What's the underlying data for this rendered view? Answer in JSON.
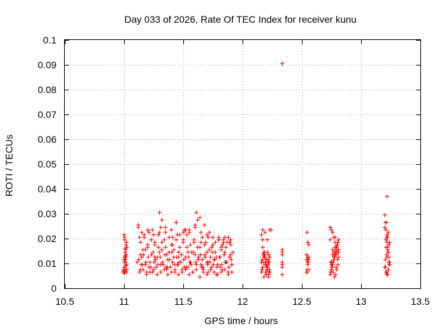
{
  "chart_data": {
    "type": "scatter",
    "title": "Day 033 of 2026, Rate Of TEC Index for receiver kunu",
    "xlabel": "GPS time / hours",
    "ylabel": "ROTI / TECUs",
    "xlim": [
      10.5,
      13.5
    ],
    "ylim": [
      0,
      0.1
    ],
    "xticks": [
      "10.5",
      "11",
      "11.5",
      "12",
      "12.5",
      "13",
      "13.5"
    ],
    "yticks": [
      "0",
      "0.01",
      "0.02",
      "0.03",
      "0.04",
      "0.05",
      "0.06",
      "0.07",
      "0.08",
      "0.09",
      "0.1"
    ],
    "xtick_values": [
      10.5,
      11,
      11.5,
      12,
      12.5,
      13,
      13.5
    ],
    "ytick_values": [
      0,
      0.01,
      0.02,
      0.03,
      0.04,
      0.05,
      0.06,
      0.07,
      0.08,
      0.09,
      0.1
    ],
    "grid": true,
    "marker": "+",
    "colors": {
      "points": "#ff0000",
      "grid": "#9a9a9a",
      "axes": "#000000"
    },
    "series": [
      {
        "x": [
          10.995,
          10.998,
          11.0,
          11.003,
          11.005,
          11.007,
          11.01,
          11.012,
          11.015,
          11.018,
          11.02,
          11.023,
          11.0,
          11.005,
          11.01,
          11.015,
          11.02,
          11.0,
          11.003,
          11.008,
          11.012,
          11.018,
          11.022,
          11.0,
          11.01,
          11.015,
          11.02,
          11.005,
          11.012,
          11.12,
          11.13,
          11.14,
          11.15,
          11.16,
          11.17,
          11.18,
          11.19,
          11.2,
          11.21,
          11.22,
          11.23,
          11.24,
          11.25,
          11.26,
          11.27,
          11.28,
          11.29,
          11.3,
          11.31,
          11.32,
          11.33,
          11.34,
          11.35,
          11.36,
          11.37,
          11.38,
          11.39,
          11.4,
          11.41,
          11.42,
          11.43,
          11.44,
          11.45,
          11.46,
          11.47,
          11.48,
          11.49,
          11.5,
          11.51,
          11.52,
          11.53,
          11.54,
          11.55,
          11.56,
          11.57,
          11.58,
          11.59,
          11.6,
          11.61,
          11.62,
          11.63,
          11.64,
          11.65,
          11.66,
          11.67,
          11.68,
          11.69,
          11.7,
          11.71,
          11.72,
          11.73,
          11.74,
          11.75,
          11.76,
          11.77,
          11.78,
          11.79,
          11.8,
          11.81,
          11.82,
          11.83,
          11.84,
          11.85,
          11.86,
          11.87,
          11.88,
          11.89,
          11.9,
          11.91,
          11.92,
          11.125,
          11.145,
          11.165,
          11.185,
          11.205,
          11.225,
          11.245,
          11.265,
          11.285,
          11.305,
          11.325,
          11.345,
          11.365,
          11.385,
          11.405,
          11.425,
          11.445,
          11.465,
          11.485,
          11.505,
          11.525,
          11.545,
          11.565,
          11.585,
          11.605,
          11.625,
          11.645,
          11.665,
          11.685,
          11.705,
          11.725,
          11.745,
          11.765,
          11.785,
          11.805,
          11.825,
          11.845,
          11.865,
          11.885,
          11.905,
          11.13,
          11.16,
          11.19,
          11.22,
          11.25,
          11.28,
          11.31,
          11.34,
          11.37,
          11.4,
          11.43,
          11.46,
          11.49,
          11.52,
          11.55,
          11.58,
          11.61,
          11.64,
          11.67,
          11.7,
          11.73,
          11.76,
          11.79,
          11.82,
          11.85,
          11.88,
          11.91,
          11.14,
          11.17,
          11.2,
          11.23,
          11.26,
          11.29,
          11.32,
          11.35,
          11.38,
          11.41,
          11.44,
          11.47,
          11.5,
          11.53,
          11.56,
          11.59,
          11.62,
          11.65,
          11.68,
          11.71,
          11.74,
          11.77,
          11.8,
          11.83,
          11.86,
          11.89,
          11.15,
          11.2,
          11.25,
          11.3,
          11.35,
          11.4,
          11.45,
          11.5,
          11.55,
          11.6,
          11.65,
          11.7,
          11.75,
          11.8,
          11.85,
          11.9,
          11.11,
          11.155,
          11.21,
          11.255,
          11.31,
          11.355,
          11.41,
          11.455,
          11.51,
          11.555,
          11.61,
          11.655,
          11.71,
          11.755,
          11.81,
          11.855,
          11.91,
          11.12,
          11.24,
          11.32,
          11.44,
          11.52,
          11.64,
          11.68,
          11.72,
          11.84,
          11.88,
          11.14,
          11.18,
          11.26,
          11.3,
          11.36,
          11.42,
          11.46,
          11.54,
          11.6,
          11.66,
          11.7,
          11.78,
          11.82,
          11.9,
          12.16,
          12.165,
          12.17,
          12.175,
          12.18,
          12.185,
          12.19,
          12.195,
          12.2,
          12.205,
          12.21,
          12.215,
          12.22,
          12.225,
          12.23,
          12.16,
          12.17,
          12.18,
          12.19,
          12.2,
          12.21,
          12.22,
          12.23,
          12.165,
          12.175,
          12.185,
          12.195,
          12.205,
          12.215,
          12.225,
          12.17,
          12.19,
          12.21,
          12.23,
          12.18,
          12.2,
          12.22,
          12.16,
          12.2,
          12.24,
          12.17,
          12.21,
          12.19,
          12.23,
          12.18,
          12.22,
          12.335,
          12.335,
          12.335,
          12.335,
          12.335,
          12.335,
          12.335,
          12.54,
          12.545,
          12.55,
          12.555,
          12.56,
          12.54,
          12.55,
          12.56,
          12.545,
          12.555,
          12.54,
          12.55,
          12.56,
          12.545,
          12.55,
          12.74,
          12.745,
          12.75,
          12.755,
          12.76,
          12.765,
          12.77,
          12.775,
          12.78,
          12.785,
          12.79,
          12.795,
          12.8,
          12.805,
          12.81,
          12.74,
          12.75,
          12.76,
          12.77,
          12.78,
          12.79,
          12.8,
          12.81,
          12.745,
          12.755,
          12.765,
          12.775,
          12.785,
          12.795,
          12.805,
          12.75,
          12.77,
          12.79,
          12.81,
          12.76,
          12.78,
          12.8,
          12.74,
          12.78,
          12.8,
          12.76,
          12.79,
          12.77,
          12.75,
          12.81,
          13.2,
          13.205,
          13.21,
          13.215,
          13.22,
          13.225,
          13.23,
          13.235,
          13.24,
          13.2,
          13.21,
          13.22,
          13.23,
          13.24,
          13.205,
          13.215,
          13.225,
          13.235,
          13.21,
          13.22,
          13.23,
          13.2,
          13.215,
          13.225,
          13.24,
          13.21,
          13.23,
          13.22,
          13.235,
          13.205,
          13.215,
          13.225,
          13.23,
          13.24,
          13.22,
          12.335
        ],
        "y": [
          0.0065,
          0.0075,
          0.007,
          0.006,
          0.0065,
          0.0125,
          0.013,
          0.0115,
          0.0105,
          0.0175,
          0.0185,
          0.0165,
          0.0215,
          0.0195,
          0.0145,
          0.009,
          0.0065,
          0.0085,
          0.0105,
          0.0125,
          0.0155,
          0.0135,
          0.0075,
          0.0115,
          0.016,
          0.0125,
          0.0095,
          0.0205,
          0.0075,
          0.0245,
          0.0205,
          0.0075,
          0.0125,
          0.0155,
          0.0215,
          0.0095,
          0.0065,
          0.0175,
          0.0225,
          0.0105,
          0.0135,
          0.0065,
          0.0215,
          0.0185,
          0.0085,
          0.0125,
          0.0165,
          0.0305,
          0.0245,
          0.0155,
          0.0095,
          0.0195,
          0.0225,
          0.0075,
          0.0115,
          0.0145,
          0.0085,
          0.0175,
          0.0205,
          0.0125,
          0.0065,
          0.0265,
          0.0095,
          0.0145,
          0.0215,
          0.0105,
          0.0075,
          0.0195,
          0.0235,
          0.0125,
          0.0165,
          0.0085,
          0.0225,
          0.0105,
          0.0145,
          0.0065,
          0.0185,
          0.0255,
          0.0305,
          0.0275,
          0.0125,
          0.0165,
          0.0095,
          0.0205,
          0.0075,
          0.0135,
          0.0185,
          0.0105,
          0.0065,
          0.0155,
          0.0125,
          0.0085,
          0.0175,
          0.0115,
          0.0145,
          0.0055,
          0.0095,
          0.0205,
          0.0125,
          0.0165,
          0.0075,
          0.0195,
          0.0145,
          0.0105,
          0.0185,
          0.0065,
          0.0125,
          0.0175,
          0.0095,
          0.0145,
          0.0115,
          0.0095,
          0.0135,
          0.0105,
          0.0125,
          0.0085,
          0.0145,
          0.0115,
          0.0095,
          0.0125,
          0.0105,
          0.0135,
          0.0085,
          0.0115,
          0.0145,
          0.0095,
          0.0125,
          0.0105,
          0.0135,
          0.0115,
          0.0085,
          0.0125,
          0.0095,
          0.0145,
          0.0105,
          0.0115,
          0.0135,
          0.0085,
          0.0125,
          0.0095,
          0.0105,
          0.0145,
          0.0115,
          0.0085,
          0.0125,
          0.0095,
          0.0135,
          0.0105,
          0.0085,
          0.0115,
          0.0065,
          0.0075,
          0.0055,
          0.0065,
          0.0075,
          0.0055,
          0.0065,
          0.0075,
          0.0055,
          0.0065,
          0.0075,
          0.0055,
          0.0065,
          0.0075,
          0.0055,
          0.0065,
          0.0075,
          0.0045,
          0.0065,
          0.0055,
          0.0075,
          0.0065,
          0.0055,
          0.0065,
          0.0075,
          0.0055,
          0.0065,
          0.0185,
          0.0205,
          0.0165,
          0.0195,
          0.0175,
          0.0215,
          0.0185,
          0.0165,
          0.0205,
          0.0175,
          0.0195,
          0.0165,
          0.0185,
          0.0215,
          0.0175,
          0.0195,
          0.0165,
          0.0185,
          0.0175,
          0.0205,
          0.0165,
          0.0185,
          0.0195,
          0.0175,
          0.0165,
          0.0185,
          0.0225,
          0.0235,
          0.0215,
          0.0225,
          0.0245,
          0.0235,
          0.0215,
          0.0225,
          0.0235,
          0.0245,
          0.0225,
          0.0215,
          0.0205,
          0.0195,
          0.0205,
          0.0195,
          0.0105,
          0.0095,
          0.0085,
          0.0105,
          0.0095,
          0.0085,
          0.0105,
          0.0095,
          0.0085,
          0.0105,
          0.0095,
          0.0085,
          0.0105,
          0.0095,
          0.0085,
          0.0105,
          0.0095,
          0.0255,
          0.0235,
          0.0275,
          0.0265,
          0.0235,
          0.0285,
          0.0255,
          0.0225,
          0.0185,
          0.0205,
          0.0135,
          0.0155,
          0.0125,
          0.0145,
          0.0135,
          0.0155,
          0.0125,
          0.0145,
          0.0135,
          0.0115,
          0.0145,
          0.0125,
          0.0155,
          0.0135,
          0.0065,
          0.0075,
          0.0085,
          0.0105,
          0.0125,
          0.0135,
          0.0095,
          0.0065,
          0.0055,
          0.0075,
          0.0085,
          0.0115,
          0.0135,
          0.0105,
          0.0065,
          0.0215,
          0.0195,
          0.0145,
          0.0125,
          0.0095,
          0.0075,
          0.0055,
          0.0065,
          0.0115,
          0.0135,
          0.0145,
          0.0105,
          0.0085,
          0.0095,
          0.0075,
          0.0235,
          0.0225,
          0.0195,
          0.0235,
          0.0045,
          0.0055,
          0.0045,
          0.0105,
          0.0115,
          0.0235,
          0.0165,
          0.0145,
          0.0125,
          0.0125,
          0.0135,
          0.0105,
          0.0055,
          0.0085,
          0.0095,
          0.0105,
          0.0135,
          0.0145,
          0.0155,
          0.0065,
          0.0075,
          0.0105,
          0.0115,
          0.0125,
          0.0135,
          0.0185,
          0.0175,
          0.0225,
          0.0105,
          0.0115,
          0.0125,
          0.0075,
          0.0065,
          0.0095,
          0.0055,
          0.0065,
          0.0075,
          0.0085,
          0.0095,
          0.0105,
          0.0115,
          0.0125,
          0.0135,
          0.0145,
          0.0155,
          0.0165,
          0.0175,
          0.0185,
          0.0195,
          0.0245,
          0.0235,
          0.0225,
          0.0205,
          0.0185,
          0.0165,
          0.0145,
          0.0125,
          0.0105,
          0.0085,
          0.0065,
          0.0045,
          0.0055,
          0.0075,
          0.0095,
          0.0105,
          0.0125,
          0.0135,
          0.0145,
          0.0155,
          0.0165,
          0.0175,
          0.0195,
          0.0205,
          0.0115,
          0.0135,
          0.0085,
          0.0145,
          0.0095,
          0.0155,
          0.0295,
          0.0265,
          0.0235,
          0.0205,
          0.0185,
          0.0165,
          0.0145,
          0.0125,
          0.0105,
          0.0085,
          0.0065,
          0.0055,
          0.0075,
          0.0095,
          0.0115,
          0.0135,
          0.0155,
          0.0175,
          0.0195,
          0.0215,
          0.0225,
          0.0245,
          0.0265,
          0.0205,
          0.0185,
          0.0165,
          0.0145,
          0.0125,
          0.0105,
          0.0085,
          0.0065,
          0.0055,
          0.0075,
          0.0095,
          0.037,
          0.0905
        ]
      }
    ]
  }
}
